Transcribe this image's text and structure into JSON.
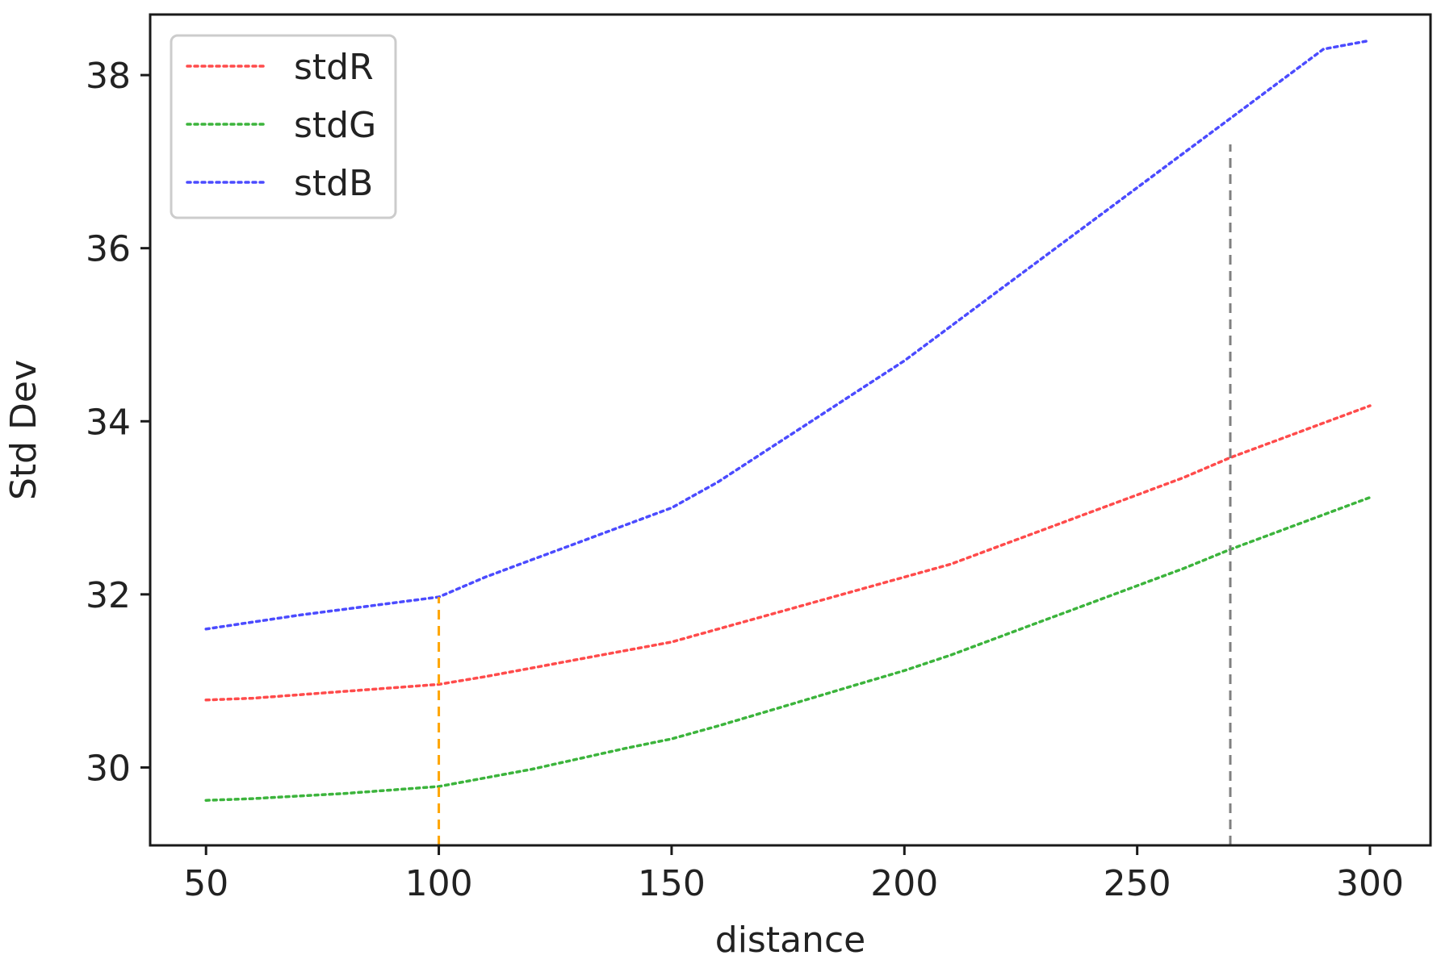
{
  "chart_data": {
    "type": "line",
    "title": "",
    "xlabel": "distance",
    "ylabel": "Std Dev",
    "xlim": [
      38,
      313
    ],
    "ylim": [
      29.1,
      38.7
    ],
    "xticks": [
      50,
      100,
      150,
      200,
      250,
      300
    ],
    "yticks": [
      30,
      32,
      34,
      36,
      38
    ],
    "x": [
      50,
      60,
      70,
      80,
      90,
      100,
      110,
      120,
      130,
      140,
      150,
      160,
      170,
      180,
      190,
      200,
      210,
      220,
      230,
      240,
      250,
      260,
      270,
      280,
      290,
      300
    ],
    "series": [
      {
        "name": "stdR",
        "color": "#ff4b4b",
        "line_style": "dotted",
        "values": [
          30.78,
          30.8,
          30.84,
          30.88,
          30.92,
          30.96,
          31.05,
          31.15,
          31.25,
          31.35,
          31.45,
          31.6,
          31.75,
          31.9,
          32.05,
          32.2,
          32.35,
          32.55,
          32.75,
          32.95,
          33.15,
          33.35,
          33.58,
          33.78,
          33.98,
          34.18
        ]
      },
      {
        "name": "stdG",
        "color": "#3cb43c",
        "line_style": "dotted",
        "values": [
          29.62,
          29.64,
          29.67,
          29.7,
          29.74,
          29.78,
          29.88,
          29.98,
          30.1,
          30.22,
          30.33,
          30.48,
          30.64,
          30.8,
          30.96,
          31.12,
          31.3,
          31.5,
          31.7,
          31.9,
          32.1,
          32.3,
          32.52,
          32.72,
          32.92,
          33.12
        ]
      },
      {
        "name": "stdB",
        "color": "#4b4bff",
        "line_style": "dotted",
        "values": [
          31.6,
          31.68,
          31.76,
          31.83,
          31.9,
          31.97,
          32.2,
          32.4,
          32.6,
          32.8,
          33.0,
          33.3,
          33.65,
          34.0,
          34.35,
          34.7,
          35.1,
          35.5,
          35.9,
          36.3,
          36.7,
          37.1,
          37.5,
          37.9,
          38.3,
          38.4
        ]
      }
    ],
    "reference_lines": [
      {
        "x": 100,
        "color": "#ffa500",
        "style": "dashed",
        "y_top": 31.97
      },
      {
        "x": 270,
        "color": "#808080",
        "style": "dashed",
        "y_top": 37.2
      }
    ],
    "legend": {
      "placement": "top-left",
      "entries": [
        "stdR",
        "stdG",
        "stdB"
      ]
    },
    "grid": false
  }
}
